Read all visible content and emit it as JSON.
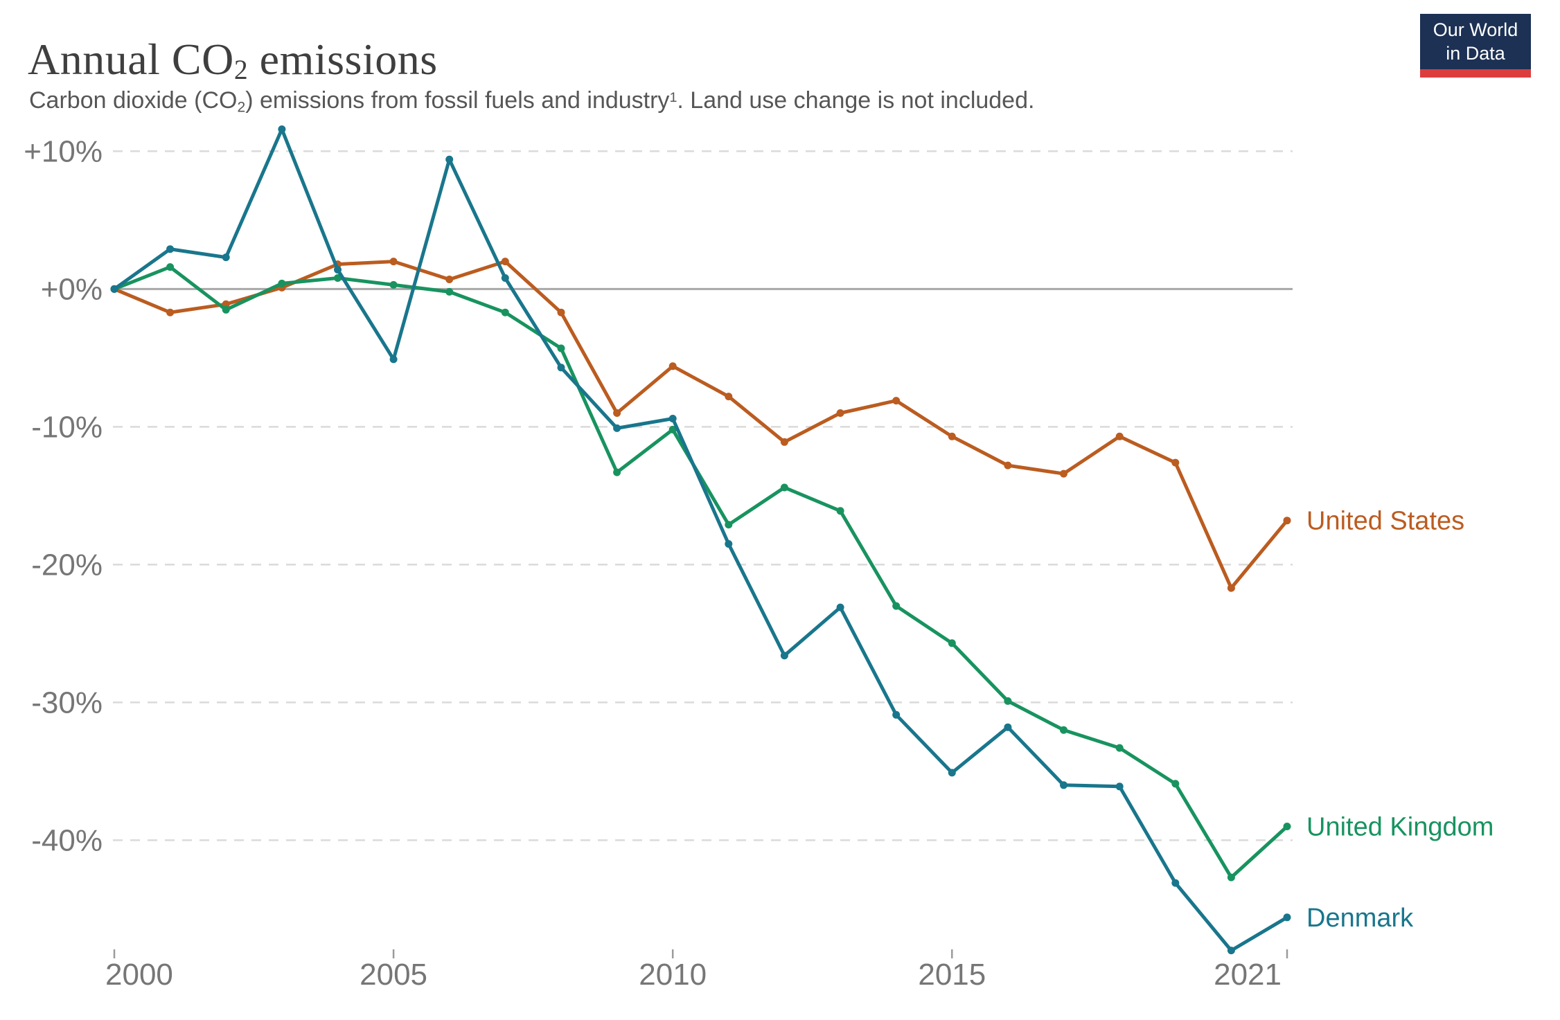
{
  "header": {
    "title": {
      "pre": "Annual CO",
      "sub": "2",
      "post": " emissions"
    },
    "subtitle": {
      "pre": "Carbon dioxide (CO",
      "sub": "2",
      "mid": ") emissions from fossil fuels and industry",
      "sup": "1",
      "post": ". Land use change is not included."
    }
  },
  "logo": {
    "line1": "Our World",
    "line2": "in Data",
    "bg_color": "#1c3154",
    "stripe_color": "#dc3e3e",
    "text_color": "#ffffff"
  },
  "chart_data": {
    "type": "line",
    "title": "Annual CO2 emissions",
    "subtitle": "Carbon dioxide (CO2) emissions from fossil fuels and industry1. Land use change is not included.",
    "value_format": "percent",
    "grid": "horizontal-dashed",
    "legend_position": "right-edge-labels",
    "xlim": [
      2000,
      2021
    ],
    "ylim": [
      -50,
      12
    ],
    "years": [
      2000,
      2001,
      2002,
      2003,
      2004,
      2005,
      2006,
      2007,
      2008,
      2009,
      2010,
      2011,
      2012,
      2013,
      2014,
      2015,
      2016,
      2017,
      2018,
      2019,
      2020,
      2021
    ],
    "y_ticks": [
      {
        "value": 10,
        "label": "+10%"
      },
      {
        "value": 0,
        "label": "+0%"
      },
      {
        "value": -10,
        "label": "-10%"
      },
      {
        "value": -20,
        "label": "-20%"
      },
      {
        "value": -30,
        "label": "-30%"
      },
      {
        "value": -40,
        "label": "-40%"
      }
    ],
    "x_ticks": [
      {
        "year": 2000,
        "label": "2000",
        "anchor": "start"
      },
      {
        "year": 2005,
        "label": "2005",
        "anchor": "middle"
      },
      {
        "year": 2010,
        "label": "2010",
        "anchor": "middle"
      },
      {
        "year": 2015,
        "label": "2015",
        "anchor": "middle"
      },
      {
        "year": 2021,
        "label": "2021",
        "anchor": "end"
      }
    ],
    "series": [
      {
        "id": "united-states",
        "label": "United States",
        "color": "#bb5c20",
        "values": [
          0,
          -1.7,
          -1.1,
          0.1,
          1.8,
          2.0,
          0.7,
          2.0,
          -1.7,
          -9.0,
          -5.6,
          -7.8,
          -11.1,
          -9.0,
          -8.1,
          -10.7,
          -12.8,
          -13.4,
          -10.7,
          -12.6,
          -21.7,
          -16.8
        ]
      },
      {
        "id": "united-kingdom",
        "label": "United Kingdom",
        "color": "#18935f",
        "values": [
          0,
          1.6,
          -1.5,
          0.4,
          0.8,
          0.3,
          -0.2,
          -1.7,
          -4.3,
          -13.3,
          -10.2,
          -17.1,
          -14.4,
          -16.1,
          -23.0,
          -25.7,
          -29.9,
          -32.0,
          -33.3,
          -35.9,
          -42.7,
          -39.0
        ]
      },
      {
        "id": "denmark",
        "label": "Denmark",
        "color": "#19768c",
        "values": [
          0,
          2.9,
          2.3,
          11.6,
          1.4,
          -5.1,
          9.4,
          0.8,
          -5.7,
          -10.1,
          -9.4,
          -18.5,
          -26.6,
          -23.1,
          -30.9,
          -35.1,
          -31.8,
          -36.0,
          -36.1,
          -43.1,
          -48.0,
          -45.6
        ]
      }
    ],
    "colors": {
      "zero_line": "#a8a8a8",
      "gridline": "#dadada",
      "axis_text": "#767676",
      "tick_mark": "#9b9b9b"
    }
  }
}
